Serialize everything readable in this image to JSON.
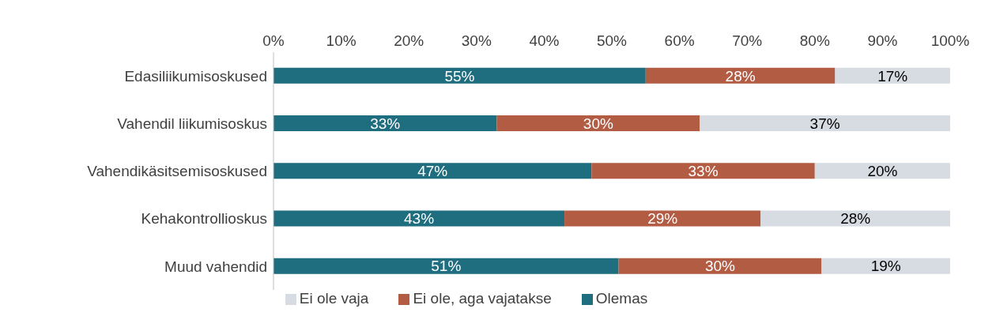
{
  "chart_data": {
    "type": "bar",
    "orientation": "horizontal",
    "stacked": true,
    "categories": [
      "Edasiliikumisoskused",
      "Vahendil liikumisoskus",
      "Vahendikäsitsemisoskused",
      "Kehakontrollioskus",
      "Muud vahendid"
    ],
    "series": [
      {
        "name": "Olemas",
        "color": "#1f6e80",
        "values": [
          55,
          33,
          47,
          43,
          51
        ],
        "value_labels": [
          "55%",
          "33%",
          "47%",
          "43%",
          "51%"
        ]
      },
      {
        "name": "Ei ole, aga vajatakse",
        "color": "#b35c44",
        "values": [
          28,
          30,
          33,
          29,
          30
        ],
        "value_labels": [
          "28%",
          "30%",
          "33%",
          "29%",
          "30%"
        ]
      },
      {
        "name": "Ei ole vaja",
        "color": "#d6dce2",
        "values": [
          17,
          37,
          20,
          28,
          19
        ],
        "value_labels": [
          "17%",
          "37%",
          "20%",
          "28%",
          "19%"
        ]
      }
    ],
    "xlim": [
      0,
      100
    ],
    "xticks": [
      {
        "value": 0,
        "label": "0%"
      },
      {
        "value": 10,
        "label": "10%"
      },
      {
        "value": 20,
        "label": "20%"
      },
      {
        "value": 30,
        "label": "30%"
      },
      {
        "value": 40,
        "label": "40%"
      },
      {
        "value": 50,
        "label": "50%"
      },
      {
        "value": 60,
        "label": "60%"
      },
      {
        "value": 70,
        "label": "70%"
      },
      {
        "value": 80,
        "label": "80%"
      },
      {
        "value": 90,
        "label": "90%"
      },
      {
        "value": 100,
        "label": "100%"
      }
    ],
    "grid": false,
    "legend": "bottom"
  }
}
